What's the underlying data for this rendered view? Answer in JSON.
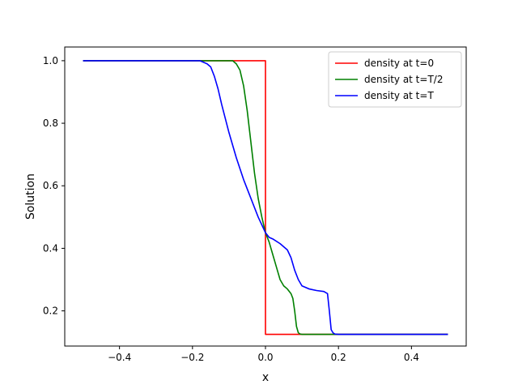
{
  "chart_data": {
    "type": "line",
    "title": "",
    "xlabel": "x",
    "ylabel": "Solution",
    "xlim": [
      -0.55,
      0.55
    ],
    "ylim": [
      0.0875,
      1.0438
    ],
    "xticks": [
      -0.4,
      -0.2,
      0.0,
      0.2,
      0.4
    ],
    "xtick_labels": [
      "−0.4",
      "−0.2",
      "0.0",
      "0.2",
      "0.4"
    ],
    "yticks": [
      0.2,
      0.4,
      0.6,
      0.8,
      1.0
    ],
    "ytick_labels": [
      "0.2",
      "0.4",
      "0.6",
      "0.8",
      "1.0"
    ],
    "grid": false,
    "legend_position": "top-right",
    "series": [
      {
        "name": "density at t=0",
        "color": "#ff0000",
        "x": [
          -0.5,
          0.0,
          0.0,
          0.5
        ],
        "y": [
          1.0,
          1.0,
          0.125,
          0.125
        ]
      },
      {
        "name": "density at t=T/2",
        "color": "#008000",
        "x": [
          -0.5,
          -0.09,
          -0.08,
          -0.07,
          -0.06,
          -0.05,
          -0.04,
          -0.03,
          -0.02,
          -0.01,
          0.0,
          0.01,
          0.02,
          0.03,
          0.04,
          0.05,
          0.06,
          0.07,
          0.075,
          0.08,
          0.085,
          0.09,
          0.095,
          0.1,
          0.11,
          0.5
        ],
        "y": [
          1.0,
          1.0,
          0.99,
          0.97,
          0.92,
          0.84,
          0.74,
          0.64,
          0.56,
          0.5,
          0.45,
          0.42,
          0.38,
          0.34,
          0.3,
          0.28,
          0.27,
          0.255,
          0.24,
          0.2,
          0.15,
          0.13,
          0.126,
          0.125,
          0.125,
          0.125
        ]
      },
      {
        "name": "density at t=T",
        "color": "#0000ff",
        "x": [
          -0.5,
          -0.18,
          -0.16,
          -0.15,
          -0.14,
          -0.13,
          -0.12,
          -0.1,
          -0.08,
          -0.06,
          -0.04,
          -0.02,
          0.0,
          0.01,
          0.02,
          0.04,
          0.06,
          0.07,
          0.08,
          0.09,
          0.1,
          0.12,
          0.14,
          0.16,
          0.17,
          0.175,
          0.18,
          0.185,
          0.19,
          0.2,
          0.5
        ],
        "y": [
          1.0,
          1.0,
          0.99,
          0.98,
          0.95,
          0.91,
          0.86,
          0.77,
          0.69,
          0.62,
          0.56,
          0.5,
          0.45,
          0.435,
          0.43,
          0.415,
          0.395,
          0.37,
          0.33,
          0.3,
          0.28,
          0.27,
          0.265,
          0.262,
          0.255,
          0.2,
          0.14,
          0.13,
          0.126,
          0.125,
          0.125
        ]
      }
    ]
  }
}
